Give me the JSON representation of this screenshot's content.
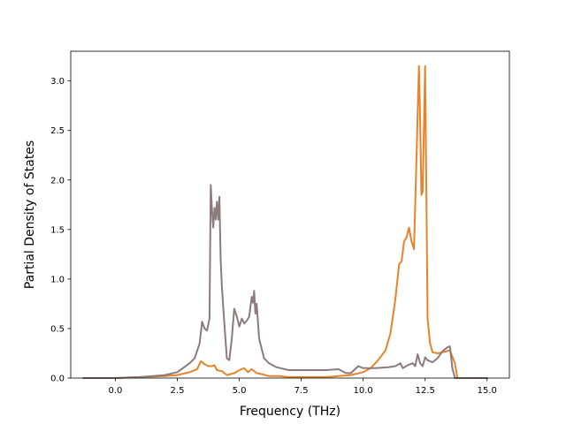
{
  "chart_data": {
    "type": "line",
    "title": "",
    "xlabel": "Frequency (THz)",
    "ylabel": "Partial Density of States",
    "xlim": [
      -1.8,
      15.9
    ],
    "ylim": [
      0.0,
      3.3
    ],
    "xticks": [
      0.0,
      2.5,
      5.0,
      7.5,
      10.0,
      12.5,
      15.0
    ],
    "xtick_labels": [
      "0.0",
      "2.5",
      "5.0",
      "7.5",
      "10.0",
      "12.5",
      "15.0"
    ],
    "yticks": [
      0.0,
      0.5,
      1.0,
      1.5,
      2.0,
      2.5,
      3.0
    ],
    "ytick_labels": [
      "0.0",
      "0.5",
      "1.0",
      "1.5",
      "2.0",
      "2.5",
      "3.0"
    ],
    "grid": false,
    "legend": "none",
    "series": [
      {
        "color": "#e8832a",
        "x": [
          -1.3,
          0.0,
          1.0,
          2.0,
          2.5,
          3.0,
          3.3,
          3.45,
          3.6,
          3.75,
          3.9,
          4.0,
          4.1,
          4.3,
          4.5,
          4.8,
          5.0,
          5.2,
          5.35,
          5.5,
          5.7,
          5.9,
          6.2,
          6.6,
          7.0,
          7.5,
          8.0,
          8.5,
          9.0,
          9.5,
          10.0,
          10.3,
          10.6,
          10.9,
          11.1,
          11.3,
          11.45,
          11.55,
          11.65,
          11.75,
          11.85,
          11.95,
          12.05,
          12.15,
          12.25,
          12.3,
          12.35,
          12.4,
          12.45,
          12.5,
          12.55,
          12.6,
          12.7,
          12.8,
          13.0,
          13.2,
          13.5,
          13.7,
          13.8,
          14.0,
          15.0
        ],
        "y": [
          0.0,
          0.0,
          0.01,
          0.02,
          0.03,
          0.06,
          0.09,
          0.17,
          0.14,
          0.12,
          0.12,
          0.13,
          0.08,
          0.07,
          0.03,
          0.05,
          0.08,
          0.1,
          0.06,
          0.09,
          0.05,
          0.04,
          0.02,
          0.02,
          0.01,
          0.01,
          0.01,
          0.01,
          0.02,
          0.03,
          0.06,
          0.1,
          0.18,
          0.28,
          0.45,
          0.8,
          1.15,
          1.18,
          1.38,
          1.42,
          1.52,
          1.38,
          1.3,
          2.2,
          3.15,
          2.6,
          1.85,
          1.88,
          2.5,
          3.15,
          1.9,
          0.6,
          0.35,
          0.26,
          0.25,
          0.26,
          0.28,
          0.15,
          0.0,
          0.0,
          0.0
        ]
      },
      {
        "color": "#8c7b7c",
        "x": [
          -1.3,
          0.0,
          1.0,
          2.0,
          2.5,
          3.0,
          3.2,
          3.4,
          3.5,
          3.6,
          3.7,
          3.8,
          3.85,
          3.9,
          3.95,
          4.0,
          4.05,
          4.1,
          4.15,
          4.2,
          4.25,
          4.3,
          4.4,
          4.5,
          4.6,
          4.7,
          4.8,
          4.9,
          5.0,
          5.1,
          5.2,
          5.3,
          5.4,
          5.5,
          5.55,
          5.6,
          5.65,
          5.7,
          5.75,
          5.8,
          5.9,
          6.0,
          6.2,
          6.5,
          7.0,
          7.5,
          8.0,
          8.5,
          9.0,
          9.3,
          9.5,
          9.8,
          10.0,
          10.5,
          11.0,
          11.3,
          11.5,
          11.6,
          11.8,
          12.0,
          12.1,
          12.2,
          12.3,
          12.4,
          12.5,
          12.6,
          12.8,
          13.0,
          13.2,
          13.4,
          13.5,
          13.6,
          13.7,
          14.0,
          15.0
        ],
        "y": [
          0.0,
          0.0,
          0.01,
          0.03,
          0.06,
          0.15,
          0.2,
          0.35,
          0.57,
          0.5,
          0.48,
          0.6,
          1.95,
          1.7,
          1.52,
          1.72,
          1.6,
          1.78,
          1.6,
          1.83,
          1.2,
          0.92,
          0.55,
          0.2,
          0.18,
          0.4,
          0.7,
          0.62,
          0.52,
          0.6,
          0.55,
          0.58,
          0.62,
          0.82,
          0.76,
          0.88,
          0.65,
          0.75,
          0.58,
          0.4,
          0.3,
          0.2,
          0.15,
          0.11,
          0.08,
          0.08,
          0.08,
          0.08,
          0.09,
          0.05,
          0.05,
          0.12,
          0.1,
          0.1,
          0.11,
          0.12,
          0.15,
          0.1,
          0.13,
          0.15,
          0.12,
          0.24,
          0.15,
          0.12,
          0.21,
          0.18,
          0.16,
          0.2,
          0.27,
          0.31,
          0.32,
          0.1,
          0.0,
          0.0,
          0.0
        ]
      }
    ]
  }
}
